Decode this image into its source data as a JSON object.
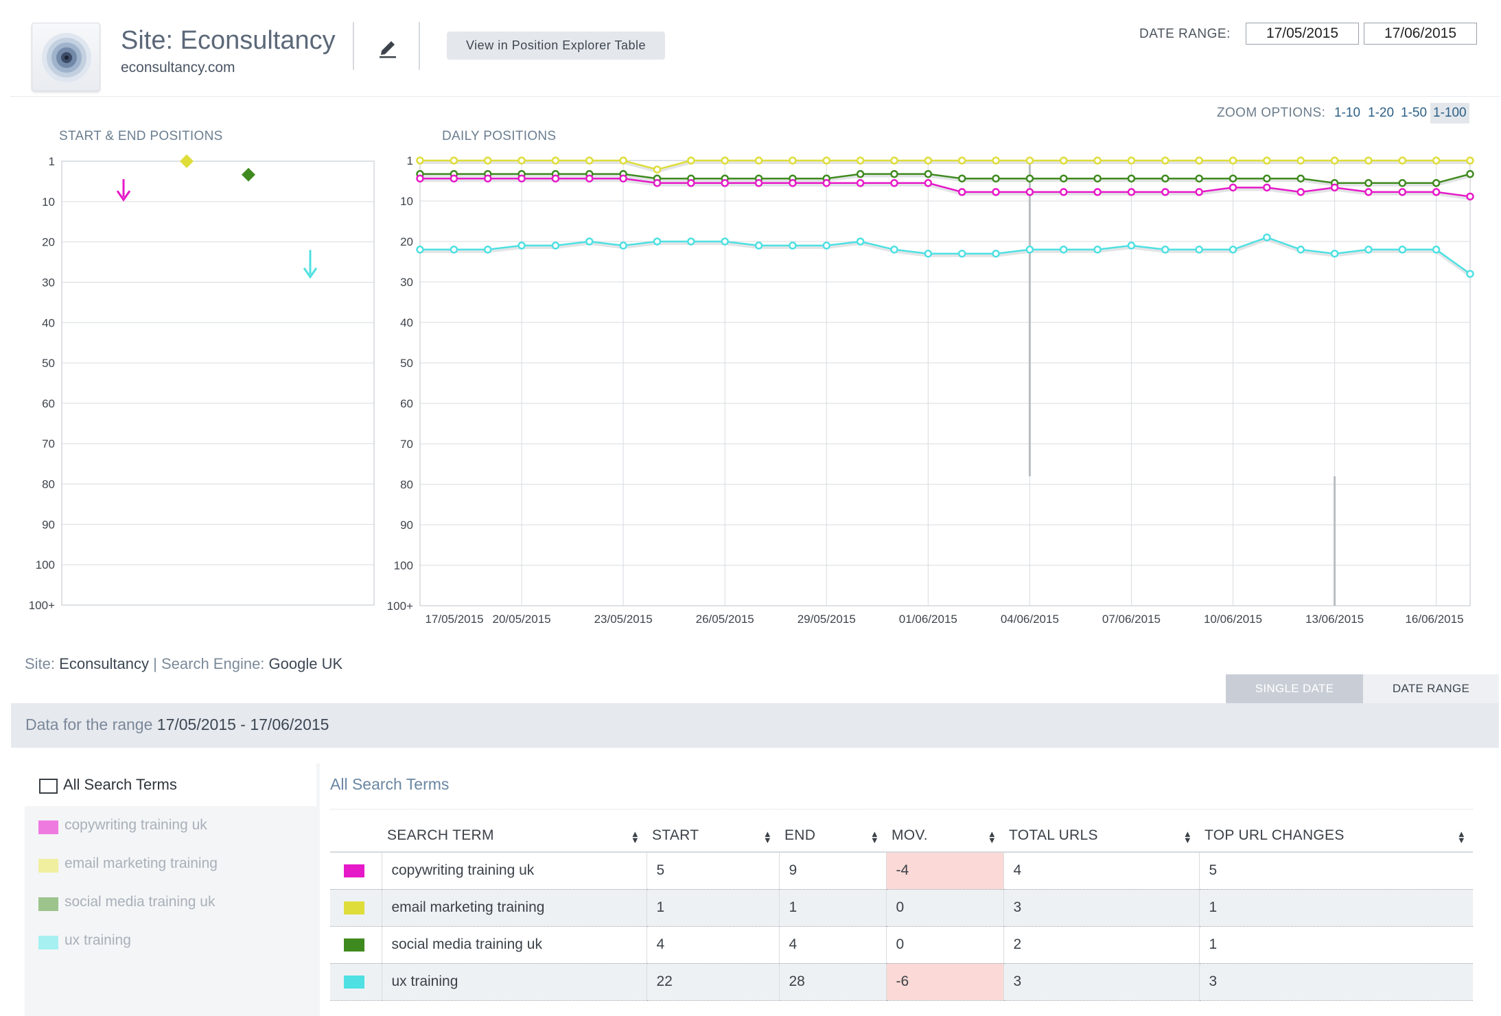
{
  "header": {
    "site_label": "Site: Econsultancy",
    "site_domain": "econsultancy.com",
    "view_button": "View in Position Explorer Table",
    "date_range_label": "DATE RANGE:",
    "date_start": "17/05/2015",
    "date_end": "17/06/2015"
  },
  "zoom": {
    "label": "ZOOM OPTIONS:",
    "options": [
      "1-10",
      "1-20",
      "1-50",
      "1-100"
    ],
    "active": "1-100"
  },
  "charts": {
    "start_end_title": "START & END POSITIONS",
    "daily_title": "DAILY POSITIONS"
  },
  "chart_data": [
    {
      "type": "scatter",
      "title": "START & END POSITIONS",
      "y_ticks": [
        "1",
        "10",
        "20",
        "30",
        "40",
        "50",
        "60",
        "70",
        "80",
        "90",
        "100",
        "100+"
      ],
      "y_inverted": true,
      "ylim": [
        1,
        110
      ],
      "series": [
        {
          "name": "copywriting training uk",
          "color": "#e619c8",
          "start": 5,
          "end": 9,
          "marker": "arrow-down"
        },
        {
          "name": "email marketing training",
          "color": "#dedd3a",
          "start": 1,
          "end": 1,
          "marker": "diamond"
        },
        {
          "name": "social media training uk",
          "color": "#3f8a1f",
          "start": 4,
          "end": 4,
          "marker": "diamond"
        },
        {
          "name": "ux training",
          "color": "#4ee0e2",
          "start": 22,
          "end": 28,
          "marker": "arrow-down"
        }
      ]
    },
    {
      "type": "line",
      "title": "DAILY POSITIONS",
      "x": [
        "17/05/2015",
        "18/05/2015",
        "19/05/2015",
        "20/05/2015",
        "21/05/2015",
        "22/05/2015",
        "23/05/2015",
        "24/05/2015",
        "25/05/2015",
        "26/05/2015",
        "27/05/2015",
        "28/05/2015",
        "29/05/2015",
        "30/05/2015",
        "31/05/2015",
        "01/06/2015",
        "02/06/2015",
        "03/06/2015",
        "04/06/2015",
        "05/06/2015",
        "06/06/2015",
        "07/06/2015",
        "08/06/2015",
        "09/06/2015",
        "10/06/2015",
        "11/06/2015",
        "12/06/2015",
        "13/06/2015",
        "14/06/2015",
        "15/06/2015",
        "16/06/2015",
        "17/06/2015"
      ],
      "x_ticks": [
        "17/05/2015",
        "20/05/2015",
        "23/05/2015",
        "26/05/2015",
        "29/05/2015",
        "01/06/2015",
        "04/06/2015",
        "07/06/2015",
        "10/06/2015",
        "13/06/2015",
        "16/06/2015"
      ],
      "y_ticks": [
        "1",
        "10",
        "20",
        "30",
        "40",
        "50",
        "60",
        "70",
        "80",
        "90",
        "100",
        "100+"
      ],
      "y_inverted": true,
      "ylim": [
        1,
        110
      ],
      "grid": true,
      "series": [
        {
          "name": "email marketing training",
          "color": "#dedd3a",
          "values": [
            1,
            1,
            1,
            1,
            1,
            1,
            1,
            3,
            1,
            1,
            1,
            1,
            1,
            1,
            1,
            1,
            1,
            1,
            1,
            1,
            1,
            1,
            1,
            1,
            1,
            1,
            1,
            1,
            1,
            1,
            1,
            1
          ]
        },
        {
          "name": "social media training uk",
          "color": "#3f8a1f",
          "values": [
            4,
            4,
            4,
            4,
            4,
            4,
            4,
            5,
            5,
            5,
            5,
            5,
            5,
            4,
            4,
            4,
            5,
            5,
            5,
            5,
            5,
            5,
            5,
            5,
            5,
            5,
            5,
            6,
            6,
            6,
            6,
            4
          ]
        },
        {
          "name": "copywriting training uk",
          "color": "#e619c8",
          "values": [
            5,
            5,
            5,
            5,
            5,
            5,
            5,
            6,
            6,
            6,
            6,
            6,
            6,
            6,
            6,
            6,
            8,
            8,
            8,
            8,
            8,
            8,
            8,
            8,
            7,
            7,
            8,
            7,
            8,
            8,
            8,
            9
          ]
        },
        {
          "name": "ux training",
          "color": "#4ee0e2",
          "values": [
            22,
            22,
            22,
            21,
            21,
            20,
            21,
            20,
            20,
            20,
            21,
            21,
            21,
            20,
            22,
            23,
            23,
            23,
            22,
            22,
            22,
            21,
            22,
            22,
            22,
            19,
            22,
            23,
            22,
            22,
            22,
            28
          ]
        }
      ],
      "annotations": [
        {
          "x": "04/06/2015",
          "from": 1,
          "to": 78
        },
        {
          "x": "13/06/2015",
          "from": 78,
          "to": 110
        }
      ]
    }
  ],
  "filter": {
    "site_label": "Site:",
    "site_value": "Econsultancy",
    "separator": "|",
    "engine_label": "Search Engine:",
    "engine_value": "Google UK"
  },
  "tabs": {
    "single": "SINGLE DATE",
    "range": "DATE RANGE"
  },
  "range_bar": {
    "label": "Data for the range",
    "value": "17/05/2015 - 17/06/2015"
  },
  "left_panel": {
    "all_label": "All Search Terms",
    "terms": [
      {
        "label": "copywriting training uk",
        "color": "#ee7ae0"
      },
      {
        "label": "email marketing training",
        "color": "#f0ef9f"
      },
      {
        "label": "social media training uk",
        "color": "#9cc48c"
      },
      {
        "label": "ux training",
        "color": "#a6f0f1"
      }
    ]
  },
  "table": {
    "title": "All Search Terms",
    "columns": [
      "SEARCH TERM",
      "START",
      "END",
      "MOV.",
      "TOTAL URLS",
      "TOP URL CHANGES"
    ],
    "rows": [
      {
        "color": "#e619c8",
        "term": "copywriting training uk",
        "start": "5",
        "end": "9",
        "mov": "-4",
        "total_urls": "4",
        "top_url_changes": "5"
      },
      {
        "color": "#dedd3a",
        "term": "email marketing training",
        "start": "1",
        "end": "1",
        "mov": "0",
        "total_urls": "3",
        "top_url_changes": "1"
      },
      {
        "color": "#3f8a1f",
        "term": "social media training uk",
        "start": "4",
        "end": "4",
        "mov": "0",
        "total_urls": "2",
        "top_url_changes": "1"
      },
      {
        "color": "#4ee0e2",
        "term": "ux training",
        "start": "22",
        "end": "28",
        "mov": "-6",
        "total_urls": "3",
        "top_url_changes": "3"
      }
    ]
  }
}
